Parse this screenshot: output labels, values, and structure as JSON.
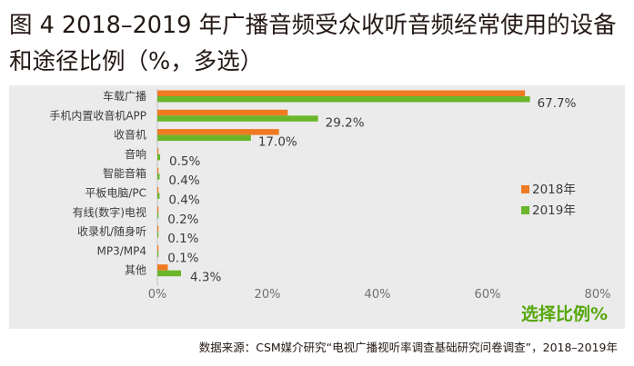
{
  "title": "图 4  2018–2019 年广播音频受众收听音频经常使用的设备和途径比例（%，多选）",
  "source": "数据来源：CSM媒介研究“电视广播视听率调查基础研究问卷调查”，2018–2019年",
  "chart_data": {
    "type": "bar",
    "orientation": "horizontal",
    "categories": [
      "车载广播",
      "手机内置收音机APP",
      "收音机",
      "音响",
      "智能音箱",
      "平板电脑/PC",
      "有线(数字)电视",
      "收录机/随身听",
      "MP3/MP4",
      "其他"
    ],
    "series": [
      {
        "name": "2018年",
        "color": "#ef7a22",
        "values": [
          66.8,
          23.7,
          22.1,
          0.2,
          0.2,
          0.2,
          0.1,
          0.1,
          0.1,
          1.9
        ]
      },
      {
        "name": "2019年",
        "color": "#6ab62a",
        "values": [
          67.7,
          29.2,
          17.0,
          0.5,
          0.4,
          0.4,
          0.2,
          0.1,
          0.1,
          4.3
        ]
      }
    ],
    "data_labels": [
      "67.7%",
      "29.2%",
      "17.0%",
      "0.5%",
      "0.4%",
      "0.4%",
      "0.2%",
      "0.1%",
      "0.1%",
      "4.3%"
    ],
    "xlim": [
      0,
      80
    ],
    "xticks": [
      "0%",
      "20%",
      "40%",
      "60%",
      "80%"
    ],
    "xlabel": "选择比例%",
    "ylabel": "",
    "grid": false,
    "legend_position": "right"
  }
}
